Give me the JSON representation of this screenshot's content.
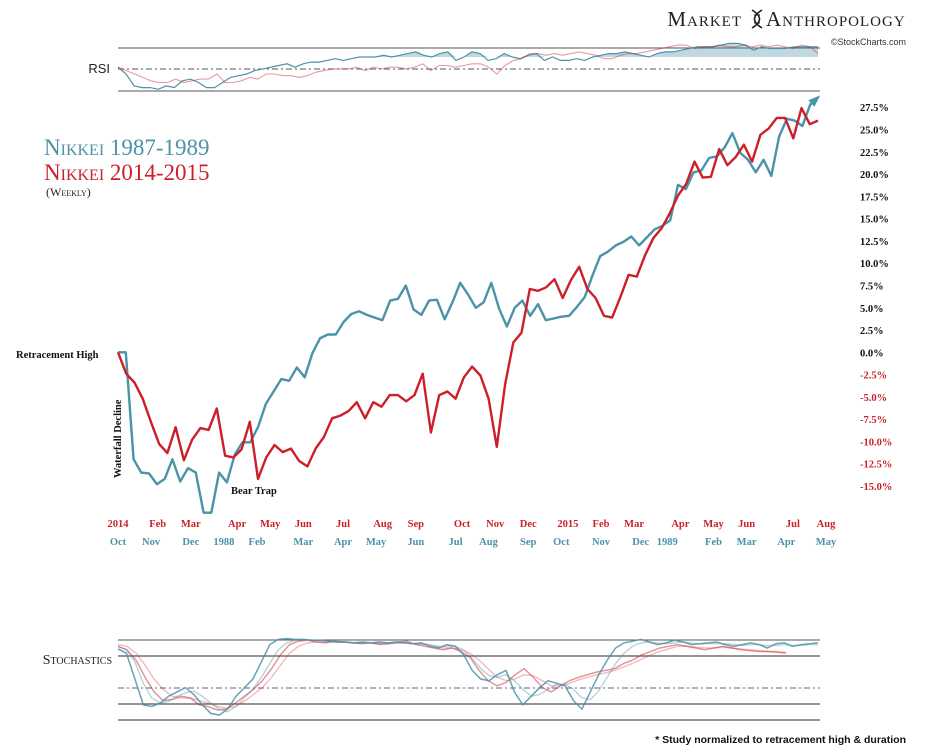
{
  "header": {
    "brand_left": "Market",
    "brand_right": "Anthropology",
    "source": "©StockCharts.com"
  },
  "colors": {
    "teal": "#4a93a8",
    "red": "#cc1f2a",
    "grid": "#555555",
    "text": "#222222"
  },
  "chart_data": {
    "type": "line",
    "title": "Nikkei 1987-1989 / Nikkei 2014-2015",
    "subtitle": "(Weekly)",
    "series": [
      {
        "name": "Nikkei 1987-1989",
        "color": "#4a93a8",
        "values": [
          0.0,
          0.0,
          -12.0,
          -13.5,
          -13.6,
          -14.8,
          -14.2,
          -12.0,
          -14.5,
          -13.0,
          -13.5,
          -18.0,
          -18.0,
          -13.5,
          -14.6,
          -11.5,
          -10.1,
          -10.1,
          -8.4,
          -5.8,
          -4.4,
          -3.0,
          -3.2,
          -1.7,
          -2.8,
          -0.1,
          1.6,
          2.0,
          2.0,
          3.4,
          4.3,
          4.6,
          4.2,
          3.9,
          3.6,
          5.8,
          6.0,
          7.5,
          4.8,
          4.2,
          5.8,
          5.9,
          3.7,
          5.6,
          7.8,
          6.5,
          5.0,
          5.6,
          7.8,
          4.9,
          2.9,
          5.0,
          5.8,
          4.1,
          5.4,
          3.6,
          3.8,
          4.0,
          4.1,
          5.1,
          6.2,
          8.6,
          10.8,
          11.3,
          12.0,
          12.4,
          13.0,
          12.0,
          12.9,
          13.8,
          14.2,
          14.8,
          18.8,
          18.3,
          20.2,
          20.4,
          21.8,
          22.0,
          23.0,
          24.6,
          22.4,
          21.6,
          20.2,
          21.6,
          19.8,
          24.2,
          26.2,
          26.0,
          25.4,
          27.8,
          28.6
        ],
        "end_marker": "arrow"
      },
      {
        "name": "Nikkei 2014-2015",
        "color": "#cc1f2a",
        "values": [
          0.0,
          -2.4,
          -3.4,
          -5.2,
          -7.8,
          -10.3,
          -11.3,
          -8.4,
          -12.1,
          -9.8,
          -8.5,
          -8.7,
          -6.3,
          -11.6,
          -11.8,
          -10.9,
          -7.8,
          -14.2,
          -11.8,
          -10.4,
          -11.2,
          -10.8,
          -12.2,
          -12.8,
          -10.8,
          -9.5,
          -7.4,
          -7.1,
          -6.6,
          -5.6,
          -7.4,
          -5.6,
          -6.1,
          -4.8,
          -4.8,
          -5.5,
          -4.8,
          -2.4,
          -9.0,
          -4.8,
          -4.4,
          -5.2,
          -2.8,
          -1.6,
          -2.6,
          -5.2,
          -10.6,
          -3.6,
          1.1,
          2.2,
          7.1,
          6.9,
          7.3,
          8.2,
          6.1,
          8.1,
          9.6,
          7.1,
          6.1,
          4.1,
          3.9,
          6.2,
          8.7,
          8.5,
          10.9,
          12.8,
          13.9,
          15.6,
          17.6,
          18.9,
          21.4,
          19.6,
          19.7,
          22.8,
          21.0,
          21.9,
          23.3,
          21.4,
          24.4,
          25.1,
          26.3,
          26.3,
          24.0,
          27.4,
          25.6,
          26.0
        ]
      }
    ],
    "ylim": [
      -15.0,
      28.2
    ],
    "y_ticks": [
      "27.5%",
      "25.0%",
      "22.5%",
      "20.0%",
      "17.5%",
      "15.0%",
      "12.5%",
      "10.0%",
      "7.5%",
      "5.0%",
      "2.5%",
      "0.0%",
      "-2.5%",
      "-5.0%",
      "-7.5%",
      "-10.0%",
      "-12.5%",
      "-15.0%"
    ],
    "y_tick_values": [
      27.5,
      25.0,
      22.5,
      20.0,
      17.5,
      15.0,
      12.5,
      10.0,
      7.5,
      5.0,
      2.5,
      0.0,
      -2.5,
      -5.0,
      -7.5,
      -10.0,
      -12.5,
      -15.0
    ],
    "x_axis_2014_2015": {
      "labels": [
        "2014",
        "Feb",
        "Mar",
        "Apr",
        "May",
        "Jun",
        "Jul",
        "Aug",
        "Sep",
        "Oct",
        "Nov",
        "Dec",
        "2015",
        "Feb",
        "Mar",
        "Apr",
        "May",
        "Jun",
        "Jul",
        "Aug"
      ],
      "positions": [
        0,
        6,
        11,
        18,
        23,
        28,
        34,
        40,
        45,
        52,
        57,
        62,
        68,
        73,
        78,
        85,
        90,
        95,
        102,
        107
      ]
    },
    "x_axis_1987_1989": {
      "labels": [
        "Oct",
        "Nov",
        "Dec",
        "1988",
        "Feb",
        "Mar",
        "Apr",
        "May",
        "Jun",
        "Jul",
        "Aug",
        "Sep",
        "Oct",
        "Nov",
        "Dec",
        "1989",
        "Feb",
        "Mar",
        "Apr",
        "May"
      ],
      "positions": [
        0,
        5,
        11,
        16,
        21,
        28,
        34,
        39,
        45,
        51,
        56,
        62,
        67,
        73,
        79,
        83,
        90,
        95,
        101,
        107
      ]
    },
    "annotations": {
      "retracement_high": "Retracement High",
      "waterfall_decline": "Waterfall Decline",
      "bear_trap": "Bear Trap"
    },
    "legend": {
      "teal_label": "Nikkei 1987-1989",
      "red_label": "Nikkei 2014-2015",
      "subtitle": "(Weekly)"
    },
    "panels": {
      "rsi_label": "RSI",
      "stochastics_label": "Stochastics"
    },
    "rsi": {
      "teal": [
        64,
        60,
        53,
        52,
        52,
        51,
        53,
        52,
        56,
        57,
        55,
        52,
        52,
        55,
        58,
        59,
        60,
        62,
        63,
        64,
        65,
        66,
        64,
        66,
        67,
        67,
        68,
        69,
        68,
        69,
        70,
        70,
        70,
        71,
        70,
        71,
        72,
        73,
        71,
        70,
        72,
        73,
        68,
        70,
        73,
        72,
        68,
        69,
        72,
        70,
        69,
        71,
        72,
        68,
        70,
        68,
        68,
        69,
        68,
        70,
        71,
        72,
        72,
        73,
        72,
        71,
        70,
        72,
        73,
        73,
        74,
        75,
        76,
        76,
        76,
        77,
        78,
        78,
        77,
        74,
        76,
        75,
        75,
        75,
        76,
        76,
        76,
        76
      ],
      "red": [
        64,
        62,
        60,
        58,
        56,
        55,
        55,
        57,
        55,
        56,
        57,
        57,
        60,
        55,
        55,
        56,
        58,
        57,
        60,
        60,
        59,
        59,
        58,
        59,
        61,
        62,
        63,
        63,
        63,
        64,
        62,
        64,
        63,
        64,
        64,
        63,
        64,
        66,
        62,
        65,
        65,
        64,
        65,
        66,
        66,
        64,
        60,
        65,
        68,
        69,
        72,
        72,
        71,
        72,
        71,
        72,
        73,
        72,
        71,
        69,
        69,
        71,
        72,
        72,
        73,
        74,
        75,
        76,
        77,
        77,
        75,
        76,
        76,
        77,
        76,
        76,
        77,
        76,
        77,
        76,
        77,
        76,
        75,
        77,
        76,
        72
      ]
    },
    "stochastics": {
      "teal_fast": [
        85,
        80,
        50,
        20,
        18,
        22,
        30,
        35,
        40,
        32,
        20,
        10,
        8,
        15,
        30,
        40,
        50,
        70,
        90,
        96,
        97,
        96,
        96,
        95,
        95,
        94,
        93,
        93,
        92,
        93,
        92,
        93,
        92,
        93,
        92,
        91,
        92,
        88,
        86,
        90,
        88,
        78,
        60,
        50,
        48,
        55,
        60,
        35,
        20,
        30,
        40,
        48,
        45,
        42,
        25,
        15,
        35,
        55,
        72,
        86,
        92,
        94,
        96,
        93,
        90,
        92,
        95,
        93,
        90,
        91,
        92,
        93,
        90,
        88,
        90,
        92,
        90,
        86,
        91,
        92,
        88,
        90,
        91,
        92
      ],
      "teal_slow": [
        88,
        84,
        70,
        45,
        28,
        22,
        24,
        30,
        34,
        36,
        30,
        22,
        15,
        12,
        18,
        28,
        38,
        52,
        68,
        84,
        92,
        95,
        96,
        95,
        95,
        94,
        93,
        93,
        92,
        92,
        92,
        92,
        92,
        92,
        92,
        91,
        91,
        90,
        88,
        88,
        88,
        84,
        74,
        62,
        54,
        52,
        55,
        48,
        38,
        30,
        32,
        38,
        44,
        44,
        38,
        28,
        26,
        36,
        52,
        68,
        80,
        88,
        92,
        93,
        92,
        91,
        92,
        93,
        92,
        91,
        91,
        91,
        91,
        90,
        89,
        90,
        90,
        89,
        89,
        90,
        89,
        89,
        90,
        90
      ],
      "red_fast": [
        88,
        84,
        72,
        52,
        35,
        25,
        26,
        30,
        28,
        20,
        18,
        14,
        15,
        22,
        30,
        38,
        48,
        62,
        78,
        90,
        94,
        95,
        93,
        92,
        94,
        93,
        92,
        91,
        92,
        90,
        91,
        93,
        94,
        90,
        88,
        86,
        84,
        86,
        82,
        75,
        60,
        48,
        42,
        46,
        55,
        62,
        52,
        40,
        35,
        42,
        48,
        52,
        55,
        58,
        60,
        62,
        68,
        72,
        78,
        82,
        86,
        88,
        90,
        88,
        86,
        84,
        86,
        88,
        86,
        84,
        83,
        82,
        82,
        81,
        80
      ],
      "red_slow": [
        90,
        88,
        80,
        66,
        50,
        38,
        30,
        28,
        28,
        25,
        22,
        18,
        16,
        18,
        24,
        32,
        40,
        52,
        66,
        80,
        88,
        92,
        93,
        93,
        93,
        93,
        92,
        92,
        92,
        91,
        91,
        92,
        92,
        91,
        90,
        88,
        86,
        86,
        84,
        80,
        72,
        62,
        52,
        48,
        50,
        55,
        54,
        48,
        42,
        42,
        45,
        49,
        52,
        55,
        57,
        60,
        64,
        68,
        73,
        78,
        82,
        85,
        88,
        88,
        87,
        86,
        86,
        87,
        86,
        85,
        84,
        83,
        82,
        82,
        81
      ]
    },
    "footnote": "* Study normalized to retracement high & duration"
  }
}
